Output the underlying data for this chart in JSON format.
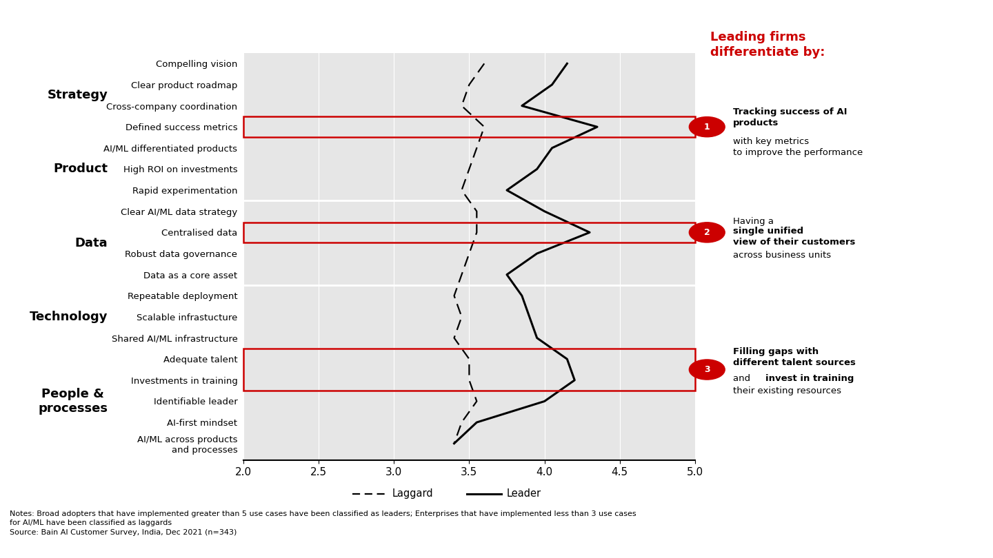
{
  "categories": [
    "Compelling vision",
    "Clear product roadmap",
    "Cross-company coordination",
    "Defined success metrics",
    "AI/ML differentiated products",
    "High ROI on investments",
    "Rapid experimentation",
    "Clear AI/ML data strategy",
    "Centralised data",
    "Robust data governance",
    "Data as a core asset",
    "Repeatable deployment",
    "Scalable infrastucture",
    "Shared AI/ML infrastructure",
    "Adequate talent",
    "Investments in training",
    "Identifiable leader",
    "AI-first mindset",
    "AI/ML across products\nand processes"
  ],
  "leader_values": [
    4.15,
    4.05,
    3.85,
    4.35,
    4.05,
    3.95,
    3.75,
    4.0,
    4.3,
    3.95,
    3.75,
    3.85,
    3.9,
    3.95,
    4.15,
    4.2,
    4.0,
    3.55,
    3.4
  ],
  "laggard_values": [
    3.6,
    3.5,
    3.45,
    3.6,
    3.55,
    3.5,
    3.45,
    3.55,
    3.55,
    3.5,
    3.45,
    3.4,
    3.45,
    3.4,
    3.5,
    3.5,
    3.55,
    3.45,
    3.4
  ],
  "boxed_indices": [
    3,
    8,
    14,
    15
  ],
  "box_groups": [
    [
      14,
      15
    ]
  ],
  "section_labels": [
    "Strategy",
    "Product",
    "Data",
    "Technology",
    "People &\nprocesses"
  ],
  "section_ranges": [
    [
      0,
      3
    ],
    [
      4,
      6
    ],
    [
      7,
      10
    ],
    [
      11,
      13
    ],
    [
      14,
      18
    ]
  ],
  "section_dividers_after": [
    3,
    6,
    10,
    13
  ],
  "xlim": [
    2.0,
    5.0
  ],
  "xticks": [
    2.0,
    2.5,
    3.0,
    3.5,
    4.0,
    4.5,
    5.0
  ],
  "plot_bg_color": "#e6e6e6",
  "leader_color": "#000000",
  "laggard_color": "#000000",
  "box_color": "#cc0000",
  "note_text": "Notes: Broad adopters that have implemented greater than 5 use cases have been classified as leaders; Enterprises that have implemented less than 3 use cases\nfor AI/ML have been classified as laggards\nSource: Bain AI Customer Survey, India, Dec 2021 (n=343)"
}
